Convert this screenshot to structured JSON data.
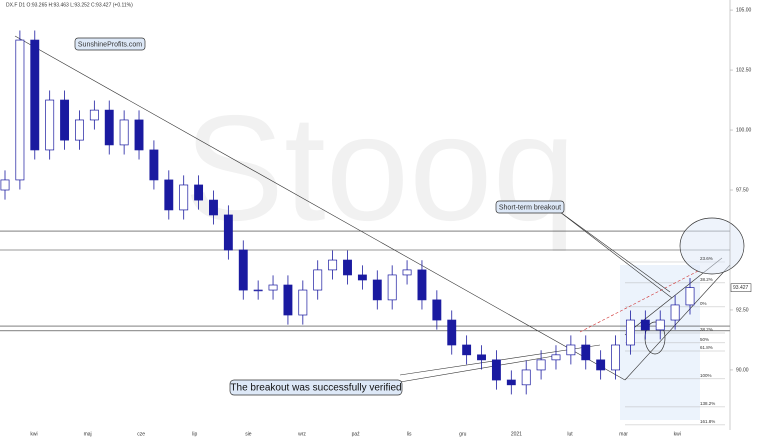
{
  "chart_data": {
    "type": "candlestick",
    "title": "DX.F D1 O:93.265 H:93.463 L:93.252 C:93.427 (+0.11%)",
    "watermark": "Stooq",
    "x_labels": [
      "kwi",
      "maj",
      "cze",
      "lip",
      "sie",
      "wrz",
      "paź",
      "lis",
      "gru",
      "2021",
      "lut",
      "mar",
      "kwi"
    ],
    "open": [
      97.5,
      97.92,
      103.75,
      99.17,
      101.25,
      99.58,
      100.42,
      100.83,
      99.38,
      100.42,
      99.17,
      97.92,
      96.67,
      97.71,
      97.08,
      96.46,
      95.0,
      93.33,
      93.33,
      93.54,
      92.29,
      93.33,
      94.17,
      94.58,
      93.96,
      93.75,
      92.92,
      93.96,
      94.17,
      92.92,
      92.08,
      91.04,
      90.63,
      90.42,
      89.58,
      89.38,
      90.0,
      90.42,
      90.63,
      91.04,
      90.42,
      90.0,
      91.04,
      92.08,
      91.67,
      92.08,
      92.71
    ],
    "high": [
      98.32,
      104.15,
      104.15,
      101.65,
      101.65,
      100.82,
      101.23,
      101.23,
      100.82,
      100.82,
      99.57,
      98.32,
      98.11,
      98.11,
      97.48,
      96.86,
      95.4,
      93.73,
      93.94,
      93.94,
      93.73,
      94.57,
      94.98,
      94.98,
      94.36,
      94.15,
      94.36,
      94.57,
      94.57,
      93.32,
      92.48,
      91.44,
      91.03,
      90.82,
      89.98,
      90.4,
      90.82,
      91.03,
      91.44,
      91.44,
      90.82,
      91.44,
      92.48,
      92.48,
      92.48,
      93.11,
      93.83
    ],
    "low": [
      97.1,
      97.52,
      98.77,
      98.77,
      99.18,
      99.18,
      100.02,
      98.98,
      98.98,
      98.77,
      97.52,
      96.27,
      96.27,
      96.68,
      96.06,
      94.6,
      92.93,
      92.93,
      92.93,
      91.89,
      91.89,
      92.93,
      93.77,
      93.56,
      93.35,
      92.52,
      92.52,
      93.56,
      92.52,
      91.68,
      90.64,
      90.23,
      90.02,
      89.18,
      88.98,
      88.98,
      89.6,
      90.02,
      90.23,
      90.02,
      89.6,
      89.6,
      90.64,
      91.27,
      91.27,
      91.68,
      92.31
    ],
    "close": [
      97.92,
      103.75,
      99.17,
      101.25,
      99.58,
      100.42,
      100.83,
      99.38,
      100.42,
      99.17,
      97.92,
      96.67,
      97.71,
      97.08,
      96.46,
      95.0,
      93.33,
      93.33,
      93.54,
      92.29,
      93.33,
      94.17,
      94.58,
      93.96,
      93.75,
      92.92,
      93.96,
      94.17,
      92.92,
      92.08,
      91.04,
      90.63,
      90.42,
      89.58,
      89.38,
      90.0,
      90.42,
      90.63,
      91.04,
      90.42,
      90.0,
      91.04,
      92.08,
      91.67,
      92.08,
      92.71,
      93.43
    ],
    "color": "#1a1aa0",
    "ylim": [
      87.08,
      105.42
    ],
    "yticks": [
      {
        "value": 105,
        "label": "105.00"
      },
      {
        "value": 102.5,
        "label": "102.50"
      },
      {
        "value": 100,
        "label": "100.00"
      },
      {
        "value": 97.5,
        "label": "97.50"
      },
      {
        "value": 92.5,
        "label": "92.50"
      },
      {
        "value": 90,
        "label": "90.00"
      }
    ],
    "levels": [
      95.79,
      95.0,
      91.83,
      91.63
    ],
    "fib_levels": [
      {
        "value": 94.5,
        "label": "23.6%"
      },
      {
        "value": 93.63,
        "label": "38.2%"
      },
      {
        "value": 92.63,
        "label": "0%"
      },
      {
        "value": 91.54,
        "label": "38.2%"
      },
      {
        "value": 91.13,
        "label": "50%"
      },
      {
        "value": 90.79,
        "label": "61.8%"
      },
      {
        "value": 89.63,
        "label": "100%"
      },
      {
        "value": 88.46,
        "label": "138.2%"
      },
      {
        "value": 87.71,
        "label": "161.8%"
      }
    ],
    "last_price": {
      "value": 93.427,
      "label": "93.427"
    },
    "annotations": [
      "SunshineProfits.com",
      "Short-term breakout",
      "The breakout was successfully verified"
    ]
  }
}
